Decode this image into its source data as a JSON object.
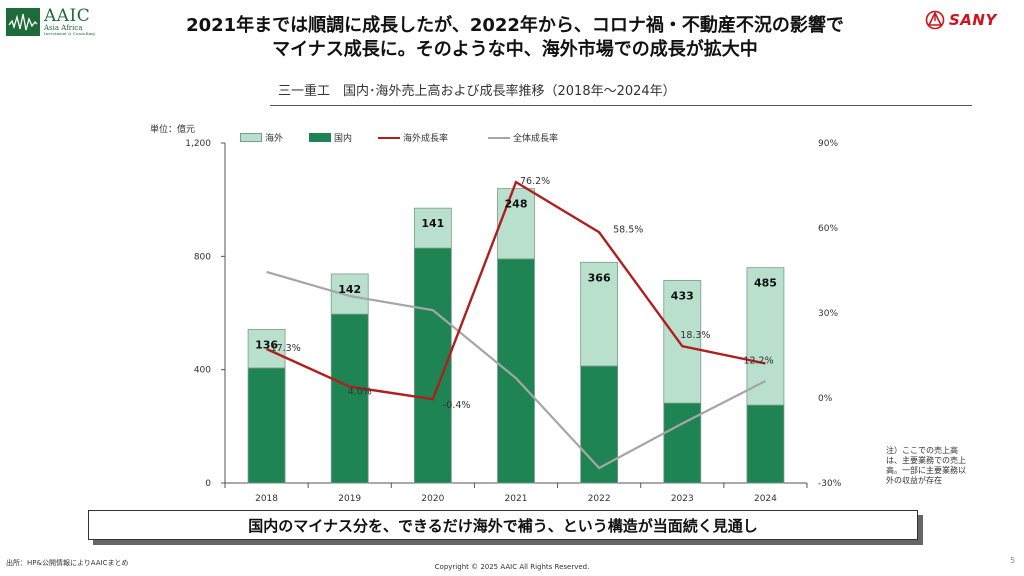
{
  "header": {
    "logo_main": "AAIC",
    "logo_sub": "Asia Africa",
    "logo_sub2": "Investment & Consulting",
    "title_line1": "2021年までは順調に成長したが、2022年から、コロナ禍・不動産不況の影響で",
    "title_line2": "マイナス成長に。そのような中、海外市場での成長が拡大中",
    "brand": "SANY"
  },
  "colors": {
    "overseas": "#b9e0cd",
    "domestic": "#1f8454",
    "overseas_growth": "#b01e1e",
    "total_growth": "#a6a6a6",
    "sany_red": "#d0121b"
  },
  "chart_data": {
    "type": "bar",
    "title": "三一重工　国内･海外売上高および成長率推移（2018年～2024年）",
    "unit_label": "単位：億元",
    "categories": [
      "2018",
      "2019",
      "2020",
      "2021",
      "2022",
      "2023",
      "2024"
    ],
    "stacked": true,
    "series": [
      {
        "name": "国内",
        "type": "bar",
        "axis": "left",
        "values": [
          406,
          596,
          829,
          791,
          413,
          282,
          275
        ]
      },
      {
        "name": "海外",
        "type": "bar",
        "axis": "left",
        "values": [
          136,
          142,
          141,
          248,
          366,
          433,
          485
        ],
        "labels": [
          "136",
          "142",
          "141",
          "248",
          "366",
          "433",
          "485"
        ]
      },
      {
        "name": "海外成長率",
        "type": "line",
        "axis": "right",
        "values": [
          17.3,
          4.0,
          -0.4,
          76.2,
          58.5,
          18.3,
          12.2
        ],
        "labels": [
          "17.3%",
          "4.0%",
          "-0.4%",
          "76.2%",
          "58.5%",
          "18.3%",
          "12.2%"
        ]
      },
      {
        "name": "全体成長率",
        "type": "line",
        "axis": "right",
        "values": [
          44.5,
          36,
          31,
          7,
          -24.7,
          -9,
          6
        ]
      }
    ],
    "legend": [
      "海外",
      "国内",
      "海外成長率",
      "全体成長率"
    ],
    "legend_position": "top",
    "left_axis": {
      "ylim": [
        0,
        1200
      ],
      "ticks": [
        0,
        400,
        800,
        1200
      ],
      "tick_labels": [
        "0",
        "400",
        "800",
        "1,200"
      ]
    },
    "right_axis": {
      "ylim": [
        -30,
        90
      ],
      "ticks": [
        -30,
        0,
        30,
        60,
        90
      ],
      "tick_labels": [
        "-30%",
        "0%",
        "30%",
        "60%",
        "90%"
      ]
    },
    "grid": false
  },
  "note": "注）ここでの売上高は、主要業務での売上高。一部に主要業務以外の収益が存在",
  "callout": "国内のマイナス分を、できるだけ海外で補う、という構造が当面続く見通し",
  "footer": {
    "source": "出所：HP&公開情報によりAAICまとめ",
    "copyright": "Copyright © 2025 AAIC All Rights Reserved.",
    "page": "5"
  }
}
